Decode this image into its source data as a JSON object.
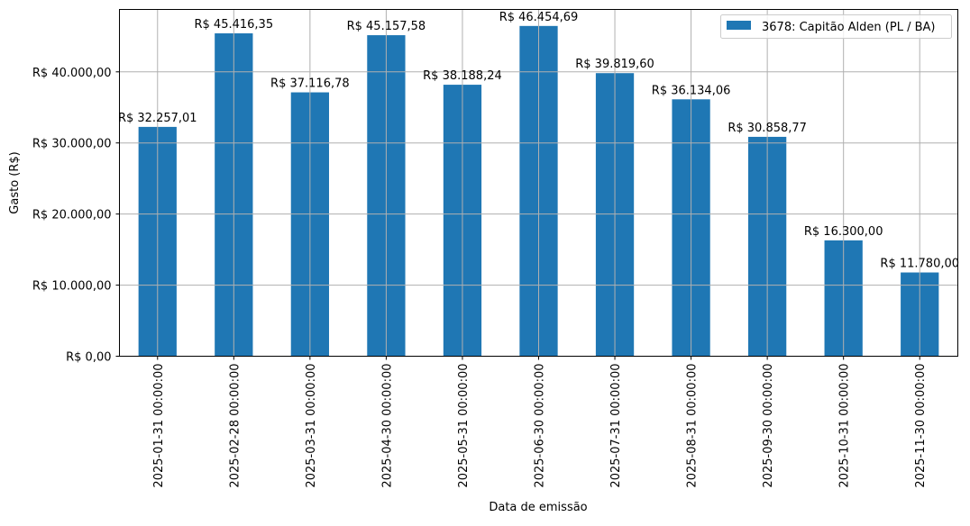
{
  "chart_data": {
    "type": "bar",
    "title": "",
    "xlabel": "Data de emissão",
    "ylabel": "Gasto (R$)",
    "categories": [
      "2025-01-31 00:00:00",
      "2025-02-28 00:00:00",
      "2025-03-31 00:00:00",
      "2025-04-30 00:00:00",
      "2025-05-31 00:00:00",
      "2025-06-30 00:00:00",
      "2025-07-31 00:00:00",
      "2025-08-31 00:00:00",
      "2025-09-30 00:00:00",
      "2025-10-31 00:00:00",
      "2025-11-30 00:00:00"
    ],
    "series": [
      {
        "name": "3678: Capitão Alden (PL / BA)",
        "color": "#1f77b4",
        "values": [
          32257.01,
          45416.35,
          37116.78,
          45157.58,
          38188.24,
          46454.69,
          39819.6,
          36134.06,
          30858.77,
          16300.0,
          11780.0
        ]
      }
    ],
    "data_labels": [
      "R$ 32.257,01",
      "R$ 45.416,35",
      "R$ 37.116,78",
      "R$ 45.157,58",
      "R$ 38.188,24",
      "R$ 46.454,69",
      "R$ 39.819,60",
      "R$ 36.134,06",
      "R$ 30.858,77",
      "R$ 16.300,00",
      "R$ 11.780,00"
    ],
    "yticks": [
      0,
      10000,
      20000,
      30000,
      40000
    ],
    "ytick_labels": [
      "R$ 0,00",
      "R$ 10.000,00",
      "R$ 20.000,00",
      "R$ 30.000,00",
      "R$ 40.000,00"
    ],
    "ylim": [
      0,
      48777
    ],
    "grid": true,
    "legend_placement": "top-right"
  }
}
